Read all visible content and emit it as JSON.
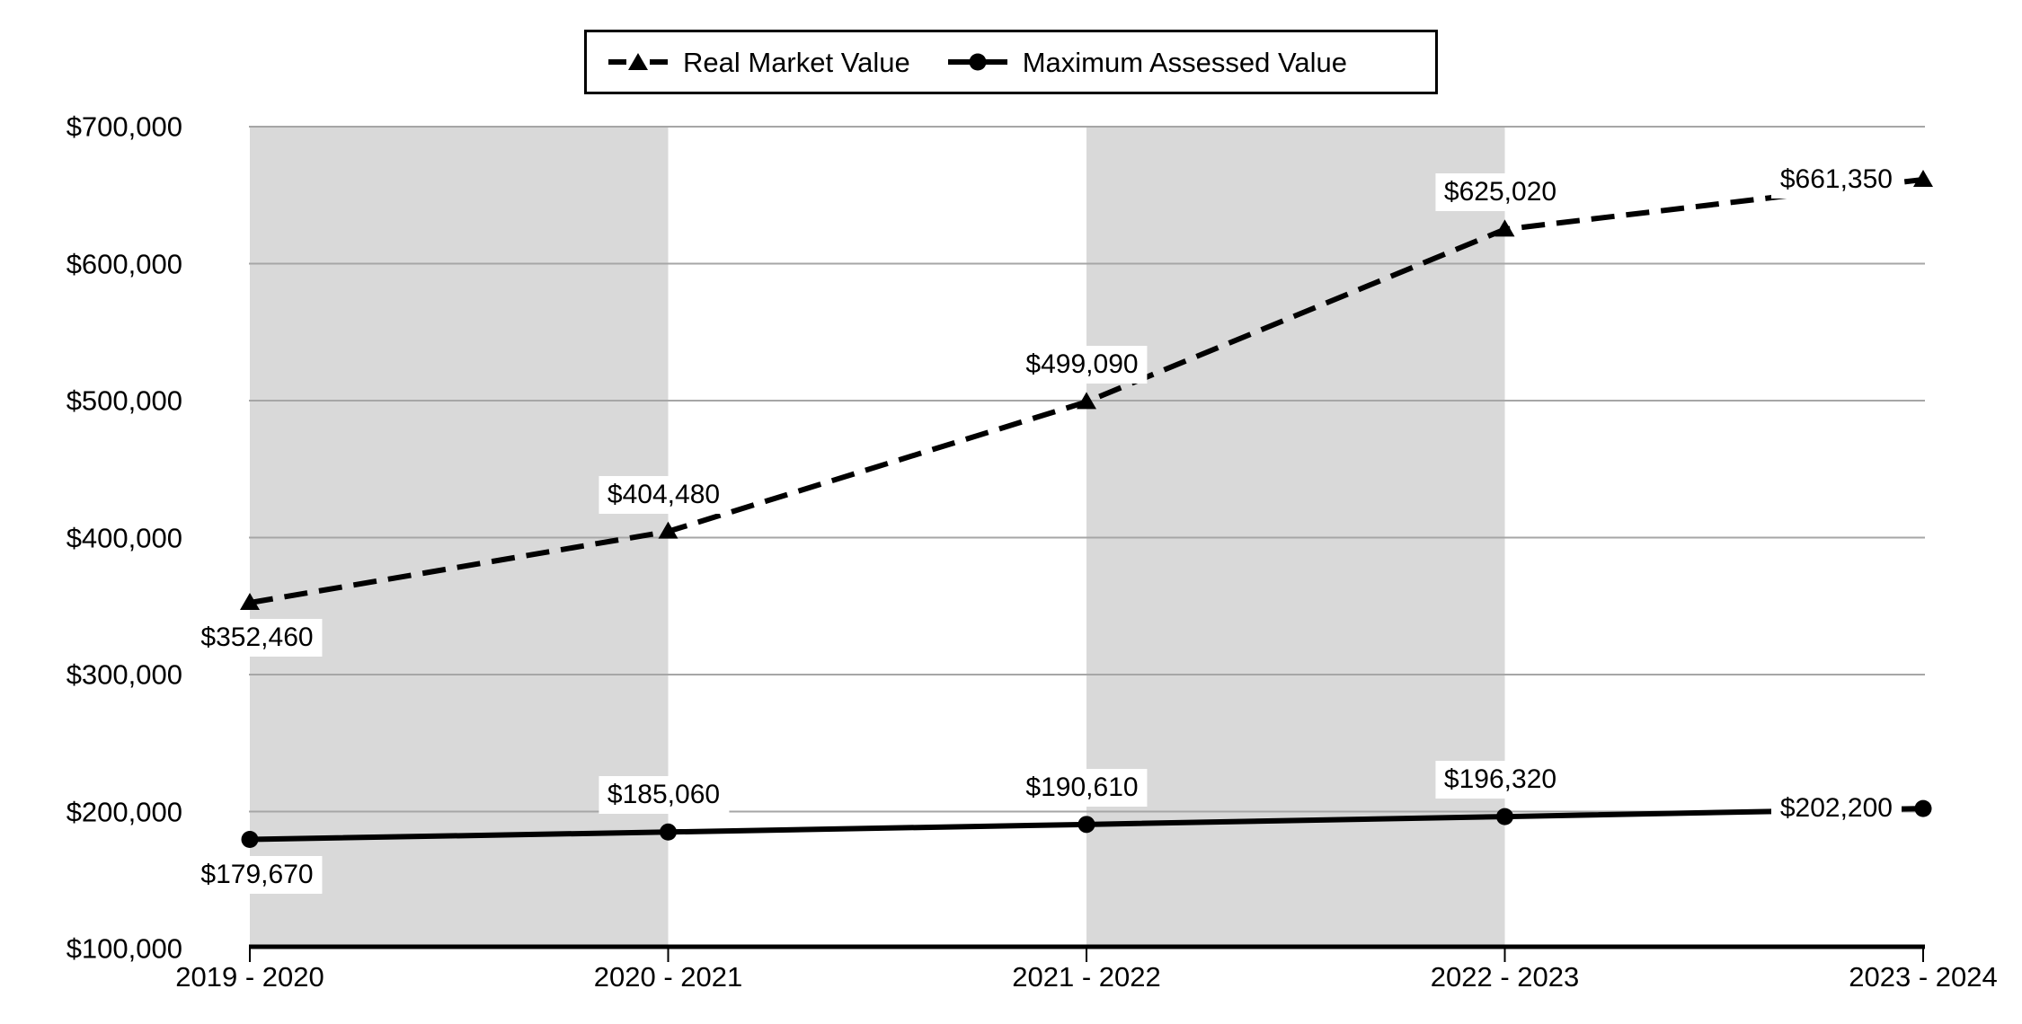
{
  "legend": {
    "position": "top-center",
    "items": [
      {
        "label": "Real Market Value",
        "marker": "dashed-line-triangle"
      },
      {
        "label": "Maximum Assessed Value",
        "marker": "solid-line-circle"
      }
    ]
  },
  "chart_data": {
    "type": "line",
    "categories": [
      "2019 - 2020",
      "2020 - 2021",
      "2021 - 2022",
      "2022 - 2023",
      "2023 - 2024"
    ],
    "series": [
      {
        "name": "Real Market Value",
        "values": [
          352460,
          404480,
          499090,
          625020,
          661350
        ],
        "data_labels": [
          "$352,460",
          "$404,480",
          "$499,090",
          "$625,020",
          "$661,350"
        ],
        "label_positions": [
          "below",
          "above",
          "above",
          "above",
          "left"
        ],
        "line_style": "dashed",
        "marker": "triangle",
        "color": "#000000"
      },
      {
        "name": "Maximum Assessed Value",
        "values": [
          179670,
          185060,
          190610,
          196320,
          202200
        ],
        "data_labels": [
          "$179,670",
          "$185,060",
          "$190,610",
          "$196,320",
          "$202,200"
        ],
        "label_positions": [
          "below",
          "above",
          "above",
          "above",
          "left"
        ],
        "line_style": "solid",
        "marker": "circle",
        "color": "#000000"
      }
    ],
    "ylim": [
      100000,
      700000
    ],
    "ytick_step": 100000,
    "ytick_labels": [
      "$100,000",
      "$200,000",
      "$300,000",
      "$400,000",
      "$500,000",
      "$600,000",
      "$700,000"
    ],
    "xlabel": "",
    "ylabel": "",
    "title": "",
    "grid": "horizontal",
    "legend_position": "top-center",
    "shaded_intervals": [
      [
        0,
        1
      ],
      [
        2,
        3
      ]
    ],
    "colors": {
      "band": "#d9d9d9",
      "gridline": "#a6a6a6",
      "axis": "#000000",
      "line": "#000000",
      "label_bg": "#ffffff",
      "text": "#000000"
    }
  }
}
